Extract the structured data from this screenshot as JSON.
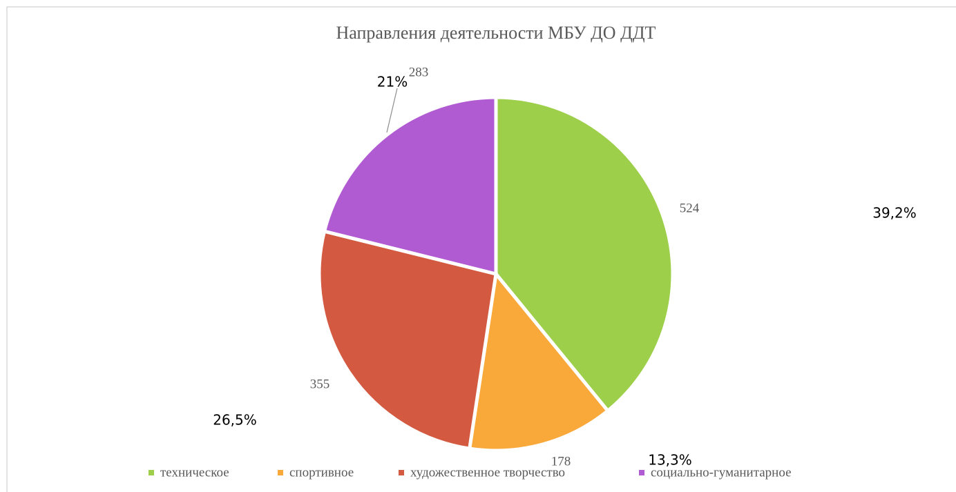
{
  "chart_data": {
    "type": "pie",
    "title": "Направления деятельности МБУ ДО ДДТ",
    "categories": [
      "техническое",
      "спортивное",
      "художественное творчество",
      "социально-гуманитарное"
    ],
    "values": [
      524,
      178,
      355,
      283
    ],
    "percentages": [
      39.2,
      13.3,
      26.5,
      21
    ],
    "percentage_labels": [
      "39,2%",
      "13,3%",
      "26,5%",
      "21%"
    ],
    "colors": [
      "#9ecf4b",
      "#f9a83a",
      "#d35a41",
      "#b15bd3"
    ],
    "legend": "bottom"
  }
}
